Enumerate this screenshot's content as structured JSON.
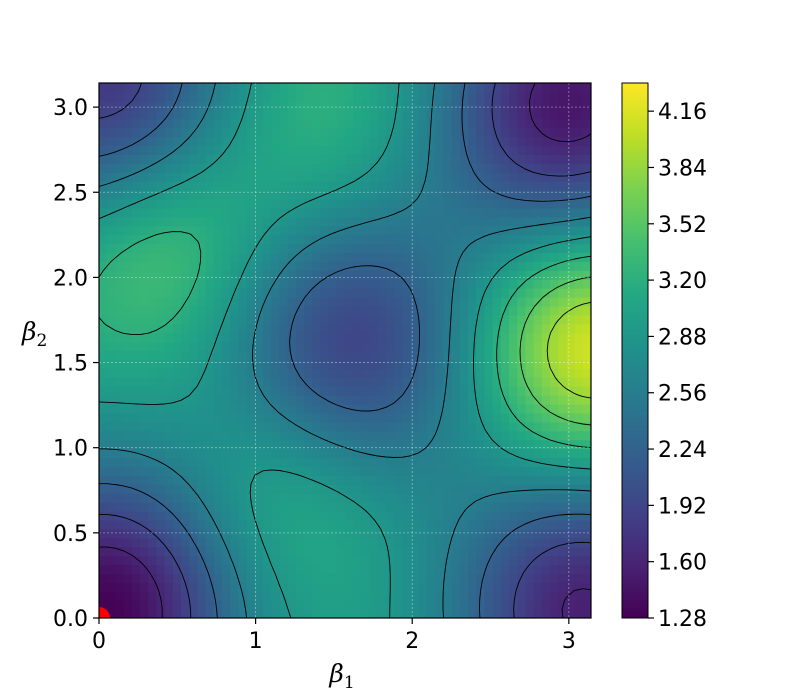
{
  "chart_data": {
    "type": "heatmap",
    "title": "",
    "xlabel": "β",
    "xlabel_subscript": "1",
    "ylabel": "β",
    "ylabel_subscript": "2",
    "xlim": [
      0,
      3.14159
    ],
    "ylim": [
      0,
      3.14159
    ],
    "x_ticks": [
      0,
      1,
      2,
      3
    ],
    "x_tick_labels": [
      "0",
      "1",
      "2",
      "3"
    ],
    "y_ticks": [
      0.0,
      0.5,
      1.0,
      1.5,
      2.0,
      2.5,
      3.0
    ],
    "y_tick_labels": [
      "0.0",
      "0.5",
      "1.0",
      "1.5",
      "2.0",
      "2.5",
      "3.0"
    ],
    "grid": true,
    "colormap": "viridis",
    "colorbar": {
      "range": [
        1.28,
        4.32
      ],
      "ticks": [
        1.28,
        1.6,
        1.92,
        2.24,
        2.56,
        2.88,
        3.2,
        3.52,
        3.84,
        4.16
      ],
      "tick_labels": [
        "1.28",
        "1.60",
        "1.92",
        "2.24",
        "2.56",
        "2.88",
        "3.20",
        "3.52",
        "3.84",
        "4.16"
      ]
    },
    "contour_levels": [
      1.6,
      1.92,
      2.24,
      2.56,
      2.88,
      3.2,
      3.52,
      3.84
    ],
    "features": [
      {
        "kind": "minimum",
        "x": 0.05,
        "y": 0.05,
        "value": 1.28
      },
      {
        "kind": "minimum",
        "x": 1.6,
        "y": 1.6,
        "value": 1.85
      },
      {
        "kind": "minimum",
        "x": 3.0,
        "y": 3.0,
        "value": 1.45
      },
      {
        "kind": "minimum",
        "x": 3.1,
        "y": 0.05,
        "value": 1.55
      },
      {
        "kind": "minimum",
        "x": 0.05,
        "y": 3.1,
        "value": 1.7
      },
      {
        "kind": "maximum",
        "x": 3.14,
        "y": 1.6,
        "value": 4.3
      },
      {
        "kind": "maximum",
        "x": 0.4,
        "y": 2.2,
        "value": 3.7
      },
      {
        "kind": "maximum",
        "x": 1.2,
        "y": 0.75,
        "value": 3.45
      },
      {
        "kind": "maximum",
        "x": 1.4,
        "y": 2.9,
        "value": 3.4
      }
    ],
    "marker": {
      "x": 0.0,
      "y": 0.0,
      "color": "#ff0000"
    }
  }
}
